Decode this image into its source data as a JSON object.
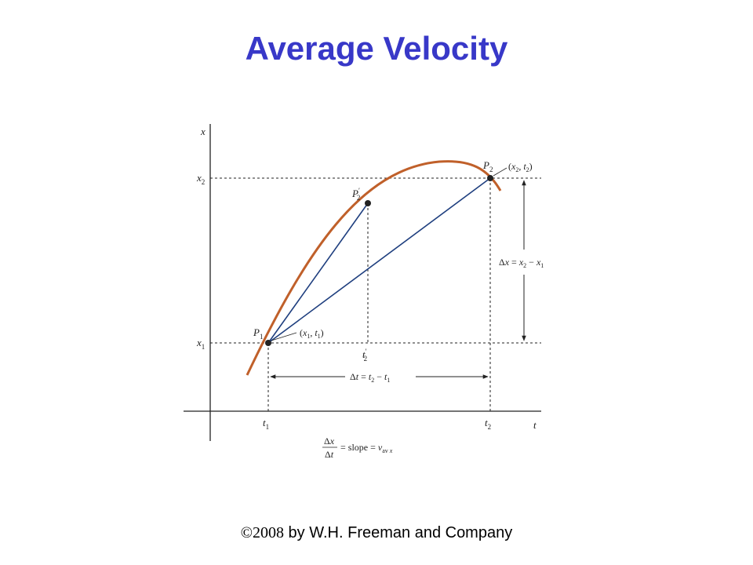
{
  "slide": {
    "title": "Average Velocity",
    "copyright_symbol": "©2008",
    "copyright_text": " by W.H. Freeman and Company"
  },
  "diagram": {
    "axis_labels": {
      "x": "x",
      "t": "t"
    },
    "tick_labels": {
      "x1": "x",
      "x2": "x",
      "t1": "t",
      "t2": "t",
      "t2_prime": "t"
    },
    "points": {
      "P1": {
        "name": "P",
        "coords_label": "(x1, t1)"
      },
      "P2": {
        "name": "P",
        "coords_label": "(x2, t2)"
      },
      "P2_prime": {
        "name": "P"
      }
    },
    "annotations": {
      "delta_t": "Δt = t2 − t1",
      "delta_x": "Δx = x2 − x1",
      "slope_formula": "Δx/Δt = slope = v_av x"
    },
    "colors": {
      "curve": "#c0602a",
      "secant": "#1f3f7f",
      "title": "#3838c8"
    }
  }
}
